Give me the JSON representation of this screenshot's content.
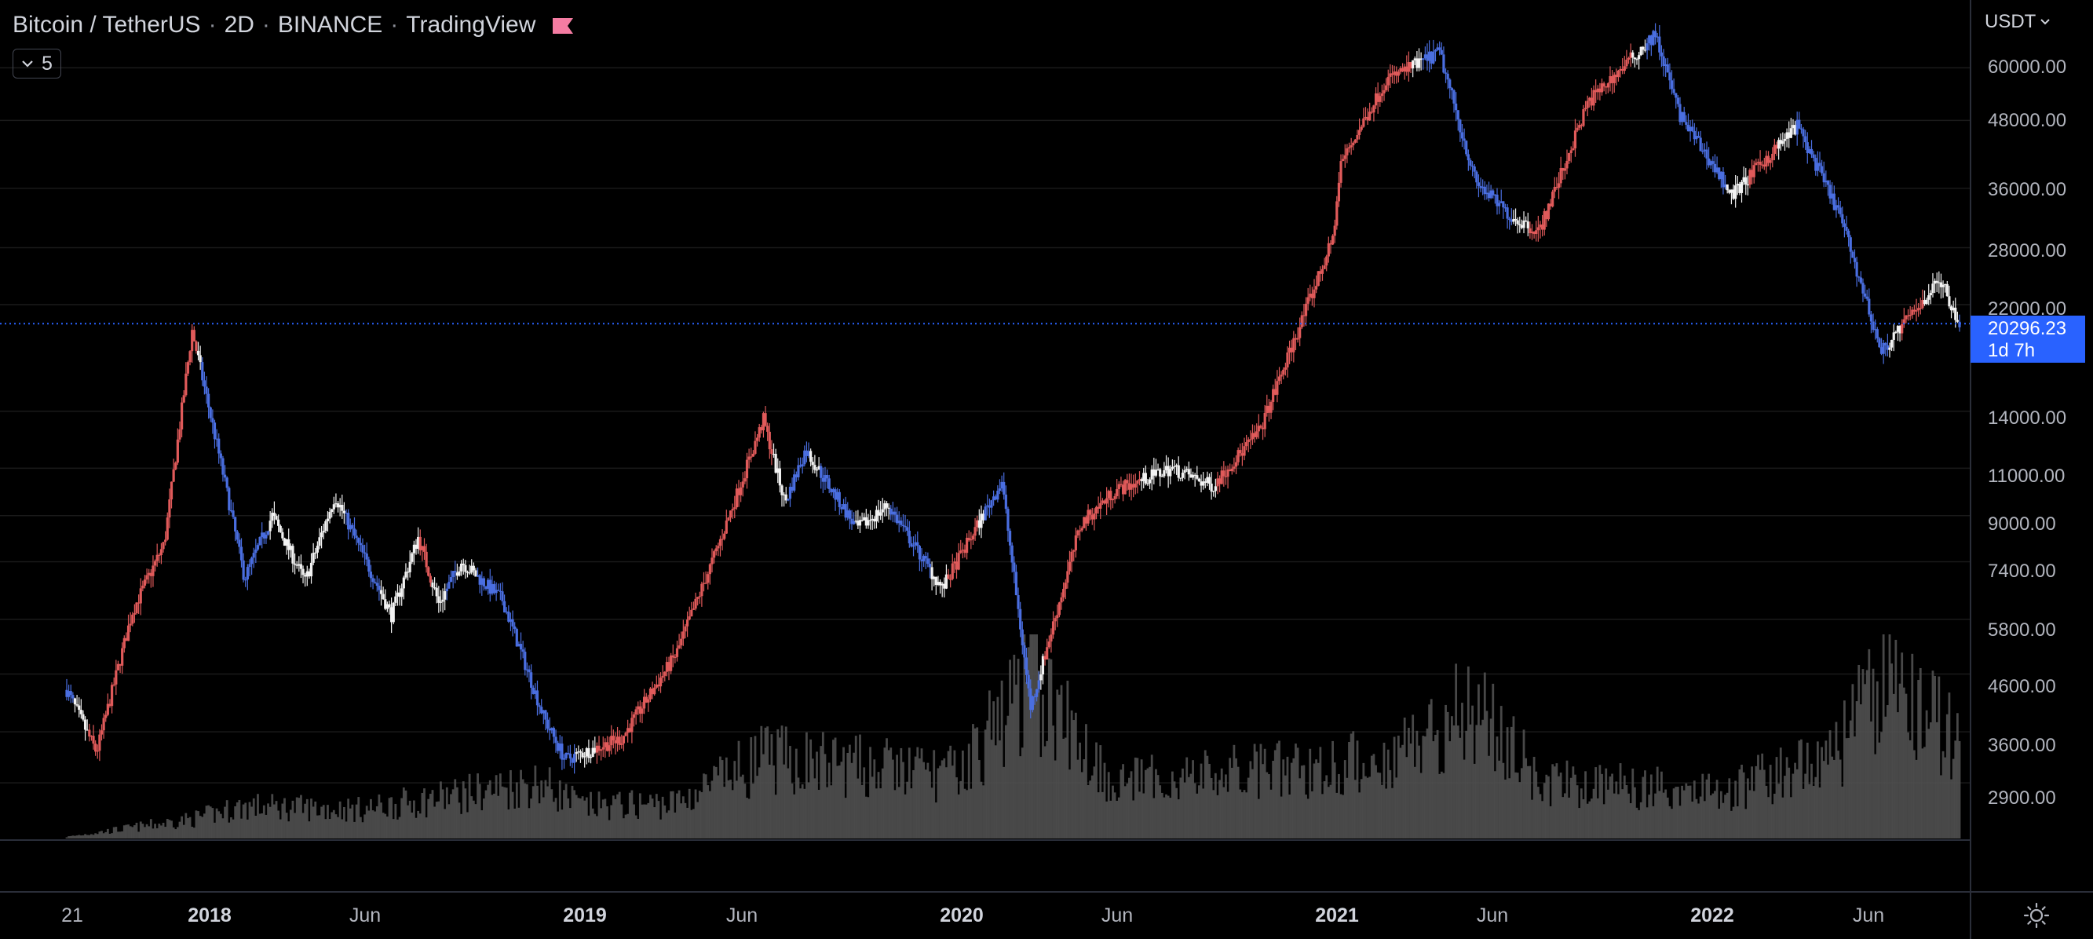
{
  "header": {
    "symbol": "Bitcoin / TetherUS",
    "interval": "2D",
    "exchange": "BINANCE",
    "source": "TradingView",
    "series_count": "5",
    "flag_color": "#f57ca2"
  },
  "currency": "USDT",
  "price_axis": {
    "ticks": [
      "60000.00",
      "48000.00",
      "36000.00",
      "28000.00",
      "22000.00",
      "14000.00",
      "11000.00",
      "9000.00",
      "7400.00",
      "5800.00",
      "4600.00",
      "3600.00",
      "2900.00"
    ],
    "tick_values": [
      60000,
      48000,
      36000,
      28000,
      22000,
      14000,
      11000,
      9000,
      7400,
      5800,
      4600,
      3600,
      2900
    ],
    "log_scale": true
  },
  "last_price": {
    "value": "20296.23",
    "countdown": "1d 7h",
    "color": "#2962ff"
  },
  "time_axis": {
    "labels": [
      {
        "text": "21",
        "bold": false,
        "date": "2017-08-21"
      },
      {
        "text": "2018",
        "bold": true,
        "date": "2018-01-01"
      },
      {
        "text": "Jun",
        "bold": false,
        "date": "2018-06-01"
      },
      {
        "text": "2019",
        "bold": true,
        "date": "2019-01-01"
      },
      {
        "text": "Jun",
        "bold": false,
        "date": "2019-06-01"
      },
      {
        "text": "2020",
        "bold": true,
        "date": "2020-01-01"
      },
      {
        "text": "Jun",
        "bold": false,
        "date": "2020-06-01"
      },
      {
        "text": "2021",
        "bold": true,
        "date": "2021-01-01"
      },
      {
        "text": "Jun",
        "bold": false,
        "date": "2021-06-01"
      },
      {
        "text": "2022",
        "bold": true,
        "date": "2022-01-01"
      },
      {
        "text": "Jun",
        "bold": false,
        "date": "2022-06-01"
      }
    ]
  },
  "colors": {
    "background": "#000000",
    "grid": "#1a1a1a",
    "candle_red": "#e05a5a",
    "candle_white": "#f2f2f2",
    "candle_blue": "#4a6ee0",
    "volume": "#555555"
  },
  "chart_data": {
    "type": "line",
    "x": [
      "2017-08-17",
      "2017-09-15",
      "2017-10-20",
      "2017-11-20",
      "2017-12-17",
      "2018-01-15",
      "2018-02-06",
      "2018-03-05",
      "2018-04-06",
      "2018-05-05",
      "2018-06-29",
      "2018-07-25",
      "2018-08-14",
      "2018-09-05",
      "2018-10-15",
      "2018-11-25",
      "2018-12-15",
      "2019-02-08",
      "2019-04-02",
      "2019-05-14",
      "2019-06-26",
      "2019-07-17",
      "2019-08-06",
      "2019-09-25",
      "2019-10-25",
      "2019-12-17",
      "2020-02-13",
      "2020-03-12",
      "2020-04-30",
      "2020-06-02",
      "2020-07-27",
      "2020-09-05",
      "2020-10-21",
      "2020-11-24",
      "2020-12-31",
      "2021-01-08",
      "2021-02-21",
      "2021-04-14",
      "2021-05-19",
      "2021-06-22",
      "2021-07-20",
      "2021-09-06",
      "2021-11-10",
      "2021-12-04",
      "2022-01-24",
      "2022-03-28",
      "2022-05-09",
      "2022-06-18",
      "2022-08-14",
      "2022-09-02"
    ],
    "y": [
      4300,
      3300,
      6000,
      8000,
      19700,
      11000,
      6900,
      9000,
      6800,
      9800,
      5900,
      8200,
      6200,
      7400,
      6300,
      3800,
      3200,
      3500,
      5000,
      8000,
      13500,
      9500,
      11900,
      8500,
      9400,
      6600,
      10400,
      4000,
      8700,
      10000,
      11000,
      10200,
      12900,
      19000,
      29000,
      40000,
      57000,
      64000,
      37000,
      32000,
      30000,
      52000,
      69000,
      49000,
      35000,
      47000,
      32000,
      18000,
      24500,
      20296
    ],
    "series": [
      {
        "name": "BTCUSDT",
        "values": [
          4300,
          3300,
          6000,
          8000,
          19700,
          11000,
          6900,
          9000,
          6800,
          9800,
          5900,
          8200,
          6200,
          7400,
          6300,
          3800,
          3200,
          3500,
          5000,
          8000,
          13500,
          9500,
          11900,
          8500,
          9400,
          6600,
          10400,
          4000,
          8700,
          10000,
          11000,
          10200,
          12900,
          19000,
          29000,
          40000,
          57000,
          64000,
          37000,
          32000,
          30000,
          52000,
          69000,
          49000,
          35000,
          47000,
          32000,
          18000,
          24500,
          20296
        ]
      }
    ],
    "volume": {
      "x": [
        "2017-08-17",
        "2017-12-17",
        "2018-02-06",
        "2018-06-01",
        "2018-11-20",
        "2019-01-01",
        "2019-04-02",
        "2019-06-26",
        "2020-01-01",
        "2020-03-12",
        "2020-06-01",
        "2021-01-08",
        "2021-02-21",
        "2021-05-19",
        "2021-07-20",
        "2022-01-24",
        "2022-05-09",
        "2022-06-18",
        "2022-09-02"
      ],
      "relative": [
        0.01,
        0.12,
        0.2,
        0.18,
        0.35,
        0.2,
        0.22,
        0.5,
        0.4,
        0.98,
        0.35,
        0.45,
        0.5,
        0.85,
        0.35,
        0.3,
        0.55,
        1.0,
        0.6
      ]
    },
    "ylim": [
      2600,
      70000
    ],
    "log_scale": true,
    "last_price": 20296.23
  }
}
